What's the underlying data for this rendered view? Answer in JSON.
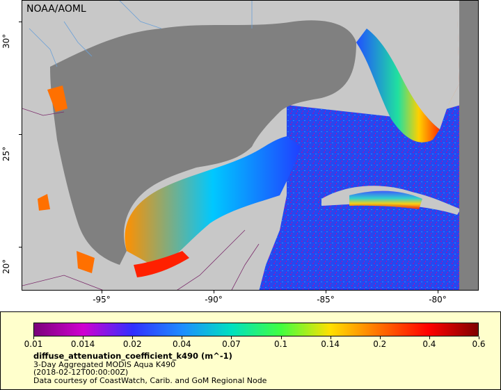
{
  "map": {
    "source_label": "NOAA/AOML",
    "lat_ticks": [
      "30°",
      "25°",
      "20°"
    ],
    "lon_ticks": [
      "-95°",
      "-90°",
      "-85°",
      "-80°"
    ],
    "colors": {
      "land": "#c8c8c8",
      "no_data": "#808080",
      "borders": "#7a2a6a",
      "rivers": "#6aa0d8"
    }
  },
  "legend": {
    "variable_name": "diffuse_attenuation_coefficient_k490 (m^-1)",
    "dataset_title": "3-Day Aggregated MODIS Aqua K490",
    "time_stamp": "(2018-02-12T00:00:00Z)",
    "credit": "Data courtesy of CoastWatch, Carib. and GoM Regional Node",
    "colorbar_ticks": [
      "0.01",
      "0.014",
      "0.02",
      "0.04",
      "0.07",
      "0.1",
      "0.14",
      "0.2",
      "0.4",
      "0.6"
    ],
    "colorbar_colors": [
      "#7a007a",
      "#d000d0",
      "#3030ff",
      "#1e8cff",
      "#00e0c0",
      "#40ff40",
      "#ffe000",
      "#ff7000",
      "#ff0000",
      "#800000"
    ]
  }
}
